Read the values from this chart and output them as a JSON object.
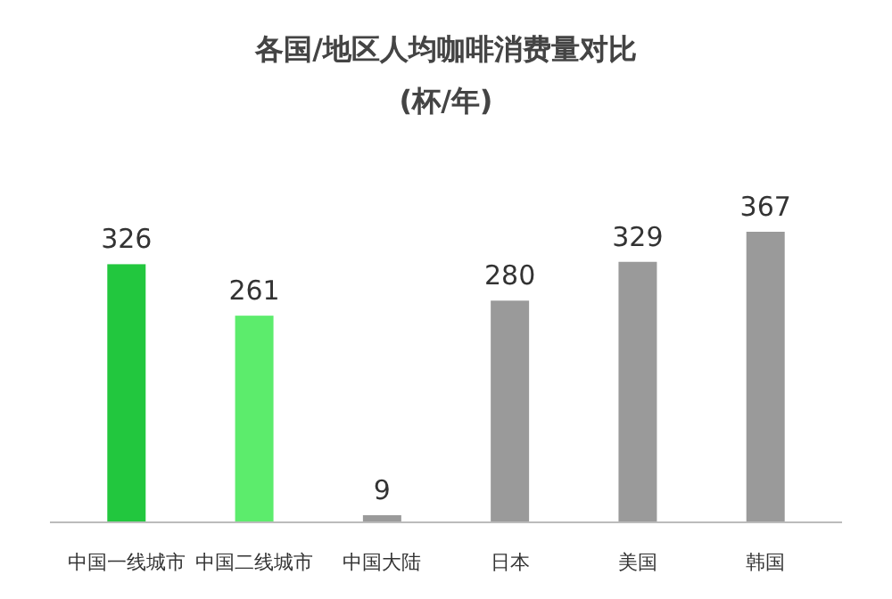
{
  "chart_data": {
    "type": "bar",
    "title": "各国/地区人均咖啡消费量对比",
    "subtitle": "(杯/年)",
    "categories": [
      "中国一线城市",
      "中国二线城市",
      "中国大陆",
      "日本",
      "美国",
      "韩国"
    ],
    "values": [
      326,
      261,
      9,
      280,
      329,
      367
    ],
    "colors": [
      "#22c73e",
      "#5cec6c",
      "#9a9a9a",
      "#9a9a9a",
      "#9a9a9a",
      "#9a9a9a"
    ],
    "data_labels": true
  }
}
